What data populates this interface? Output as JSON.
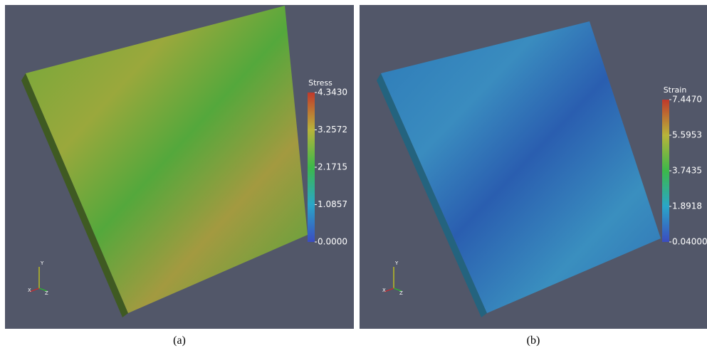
{
  "panels": [
    {
      "caption": "(a)",
      "colorbar": {
        "title": "Stress",
        "ticks": [
          {
            "value": 4.343,
            "label": "4.3430"
          },
          {
            "value": 3.2572,
            "label": "3.2572"
          },
          {
            "value": 2.1715,
            "label": "2.1715"
          },
          {
            "value": 1.0857,
            "label": "1.0857"
          },
          {
            "value": 0,
            "label": "0.0000"
          }
        ]
      },
      "axes": [
        "Y",
        "X",
        "Z"
      ]
    },
    {
      "caption": "(b)",
      "colorbar": {
        "title": "Strain",
        "ticks": [
          {
            "value": 7.447,
            "label": "7.4470"
          },
          {
            "value": 5.5953,
            "label": "5.5953"
          },
          {
            "value": 3.7435,
            "label": "3.7435"
          },
          {
            "value": 1.8918,
            "label": "1.8918"
          },
          {
            "value": 0.04,
            "label": "0.04000"
          }
        ]
      },
      "axes": [
        "Y",
        "X",
        "Z"
      ]
    }
  ]
}
